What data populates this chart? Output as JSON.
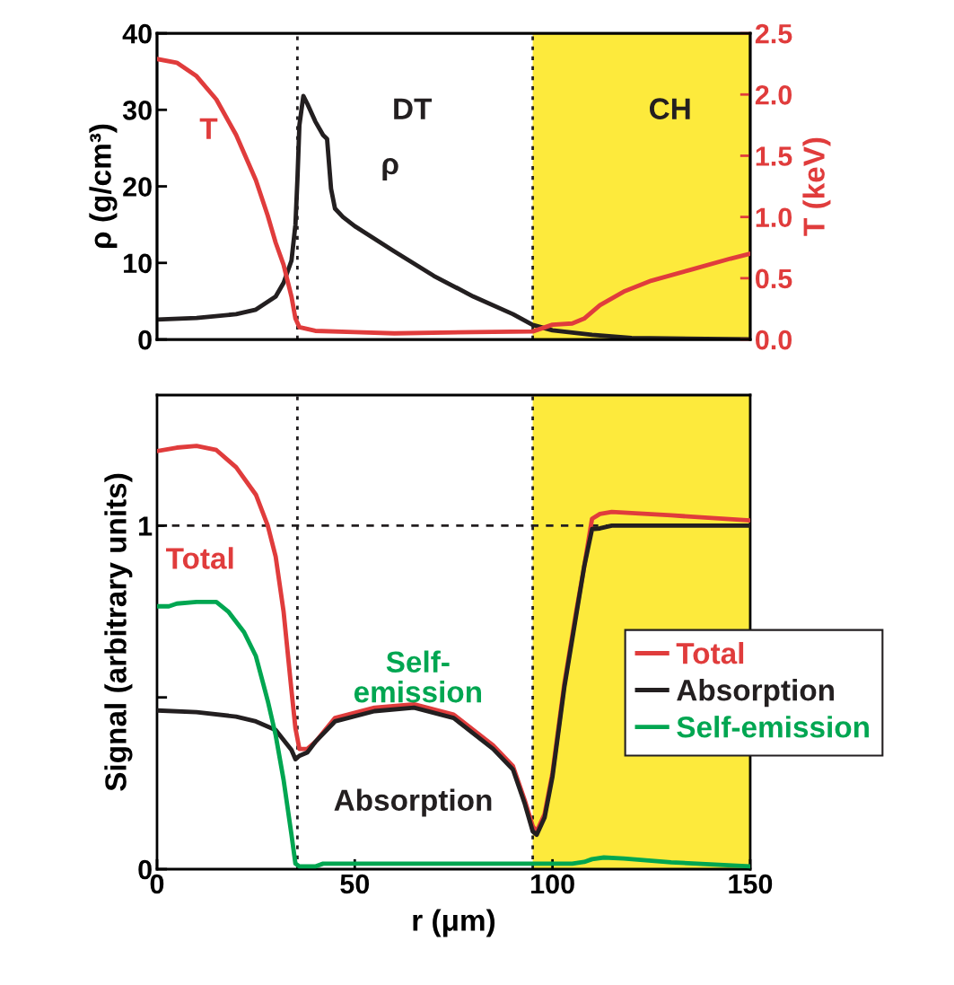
{
  "chart_data": [
    {
      "type": "line",
      "ylabel": "ρ (g/cm³)",
      "y2label": "T (keV)",
      "xlim": [
        0,
        150
      ],
      "ylim": [
        0,
        40
      ],
      "yticks": [
        0,
        10,
        20,
        30,
        40
      ],
      "y2lim": [
        0,
        2.5
      ],
      "y2ticks": [
        {
          "value": 0,
          "label": "0.0"
        },
        0.5,
        {
          "value": 1,
          "label": "1.0"
        },
        1.5,
        {
          "value": 2,
          "label": "2.0"
        },
        2.5
      ],
      "tick_labels": "y",
      "grid": false,
      "legend": false,
      "series": [
        {
          "color": "#231f20",
          "x": [
            0,
            10,
            20,
            25,
            30,
            32,
            34,
            35,
            35.5,
            36,
            37,
            38,
            40,
            42,
            43,
            44,
            45,
            47,
            50,
            60,
            70,
            80,
            90,
            95,
            100,
            110,
            120,
            150
          ],
          "values": [
            2.6,
            2.8,
            3.3,
            3.9,
            5.6,
            7.4,
            10.3,
            15,
            20.9,
            28,
            31.8,
            30.8,
            28.5,
            26.7,
            26.2,
            19.7,
            17.1,
            16,
            14.8,
            11.5,
            8.3,
            5.6,
            3.3,
            1.9,
            1.2,
            0.6,
            0.2,
            0
          ]
        },
        {
          "color": "#e03c3c",
          "axis": "y2",
          "x": [
            0,
            5,
            10,
            15,
            20,
            25,
            28,
            30,
            32,
            34,
            35,
            36,
            40,
            50,
            60,
            80,
            95,
            100,
            105,
            108,
            112,
            118,
            125,
            135,
            145,
            150
          ],
          "values": [
            2.29,
            2.26,
            2.15,
            1.96,
            1.67,
            1.3,
            1.01,
            0.79,
            0.61,
            0.35,
            0.17,
            0.1,
            0.07,
            0.06,
            0.05,
            0.06,
            0.065,
            0.12,
            0.13,
            0.17,
            0.28,
            0.39,
            0.48,
            0.57,
            0.66,
            0.7
          ]
        }
      ],
      "bands": [
        {
          "axis": "x",
          "from": 95,
          "to": 150,
          "label": null,
          "color": "#fdea3c"
        }
      ],
      "ref_lines": [
        {
          "axis": "x",
          "value": 35.5,
          "label": null,
          "color": "#231f20",
          "line_style": "dotted"
        },
        {
          "axis": "x",
          "value": 95,
          "label": null,
          "color": "#231f20",
          "line_style": "dotted"
        }
      ],
      "annotations": [
        "T",
        "ρ",
        "DT",
        "CH"
      ]
    },
    {
      "type": "line",
      "xlabel": "r (μm)",
      "ylabel": "Signal (arbitrary units)",
      "xlim": [
        0,
        150
      ],
      "xticks": [
        0,
        50,
        100,
        150
      ],
      "ylim": [
        0,
        1.38
      ],
      "yticks": [
        0,
        {
          "value": 0.5,
          "label": null
        },
        1
      ],
      "grid": false,
      "legend": "right",
      "series": [
        {
          "name": "Total",
          "color": "#e03c3c",
          "x": [
            0,
            5,
            10,
            15,
            20,
            25,
            28,
            30,
            32,
            34,
            35,
            36,
            38,
            40,
            45,
            55,
            65,
            75,
            85,
            90,
            93,
            95,
            96,
            98,
            100,
            103,
            106,
            108,
            110,
            112,
            115,
            130,
            150
          ],
          "values": [
            1.217,
            1.227,
            1.232,
            1.22,
            1.17,
            1.09,
            1.0,
            0.91,
            0.75,
            0.52,
            0.41,
            0.35,
            0.35,
            0.37,
            0.44,
            0.47,
            0.48,
            0.45,
            0.36,
            0.3,
            0.2,
            0.125,
            0.11,
            0.16,
            0.28,
            0.54,
            0.75,
            0.88,
            1.02,
            1.034,
            1.04,
            1.03,
            1.015
          ]
        },
        {
          "name": "Absorption",
          "color": "#231f20",
          "x": [
            0,
            10,
            20,
            25,
            30,
            34,
            35,
            36,
            38,
            40,
            45,
            55,
            65,
            75,
            85,
            90,
            93,
            95,
            96,
            98,
            100,
            103,
            106,
            108,
            110,
            112,
            115,
            150
          ],
          "values": [
            0.462,
            0.457,
            0.444,
            0.43,
            0.405,
            0.347,
            0.32,
            0.33,
            0.34,
            0.37,
            0.43,
            0.46,
            0.47,
            0.44,
            0.35,
            0.29,
            0.19,
            0.11,
            0.1,
            0.15,
            0.27,
            0.53,
            0.74,
            0.88,
            0.99,
            0.992,
            1.0,
            1.0
          ]
        },
        {
          "name": "Self-emission",
          "color": "#00a651",
          "x": [
            0,
            3,
            5,
            10,
            15,
            18,
            22,
            25,
            28,
            30,
            32,
            34,
            35,
            36,
            40,
            42,
            60,
            95,
            105,
            108,
            110,
            113,
            118,
            130,
            150
          ],
          "values": [
            0.765,
            0.765,
            0.773,
            0.778,
            0.778,
            0.75,
            0.69,
            0.62,
            0.49,
            0.39,
            0.26,
            0.1,
            0.016,
            0.008,
            0.008,
            0.016,
            0.016,
            0.016,
            0.016,
            0.021,
            0.029,
            0.034,
            0.031,
            0.02,
            0.008
          ]
        }
      ],
      "bands": [
        {
          "axis": "x",
          "from": 95,
          "to": 150,
          "label": null,
          "color": "#fdea3c"
        }
      ],
      "ref_lines": [
        {
          "axis": "x",
          "value": 35.5,
          "label": null,
          "color": "#231f20",
          "line_style": "dotted"
        },
        {
          "axis": "x",
          "value": 95,
          "label": null,
          "color": "#231f20",
          "line_style": "dotted"
        },
        {
          "axis": "y",
          "value": 1,
          "label": null,
          "color": "#231f20",
          "line_style": "dashed"
        }
      ],
      "annotations": [
        "Total",
        "Self-\nemission",
        "Absorption"
      ]
    }
  ]
}
